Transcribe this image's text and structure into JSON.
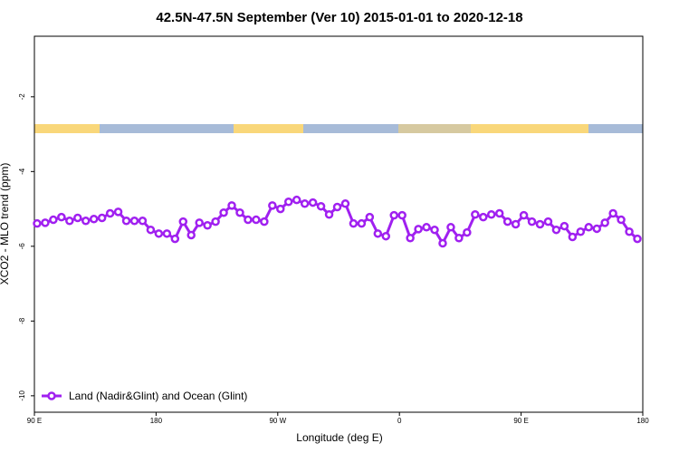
{
  "chart_data": {
    "type": "line",
    "title": "42.5N-47.5N September (Ver 10)   2015-01-01 to 2020-12-18",
    "x_label": "Longitude (deg E)",
    "y_label": "XCO2 - MLO trend (ppm)",
    "xlim": [
      90,
      540
    ],
    "ylim": [
      -10.44,
      -0.38
    ],
    "xticks": [
      {
        "value": 90,
        "label": "90 E"
      },
      180,
      {
        "value": 270,
        "label": "90 W"
      },
      {
        "value": 360,
        "label": "0"
      },
      {
        "value": 450,
        "label": "90 E"
      },
      {
        "value": 540,
        "label": "180"
      }
    ],
    "yticks": [
      -2,
      -4,
      -6,
      -8,
      -10
    ],
    "legend": "bottom-left",
    "x": [
      92,
      98,
      104,
      110,
      116,
      122,
      128,
      134,
      140,
      146,
      152,
      158,
      164,
      170,
      176,
      182,
      188,
      194,
      200,
      206,
      212,
      218,
      224,
      230,
      236,
      242,
      248,
      254,
      260,
      266,
      272,
      278,
      284,
      290,
      296,
      302,
      308,
      314,
      320,
      326,
      332,
      338,
      344,
      350,
      356,
      362,
      368,
      374,
      380,
      386,
      392,
      398,
      404,
      410,
      416,
      422,
      428,
      434,
      440,
      446,
      452,
      458,
      464,
      470,
      476,
      482,
      488,
      494,
      500,
      506,
      512,
      518,
      524,
      530,
      536
    ],
    "series": [
      {
        "name": "Land (Nadir&Glint) and Ocean (Glint)",
        "color": "#a020f0",
        "values": [
          -5.39,
          -5.37,
          -5.29,
          -5.22,
          -5.32,
          -5.24,
          -5.32,
          -5.27,
          -5.24,
          -5.12,
          -5.08,
          -5.32,
          -5.32,
          -5.32,
          -5.56,
          -5.66,
          -5.66,
          -5.8,
          -5.34,
          -5.7,
          -5.37,
          -5.44,
          -5.34,
          -5.1,
          -4.91,
          -5.1,
          -5.29,
          -5.29,
          -5.34,
          -4.91,
          -5.0,
          -4.81,
          -4.76,
          -4.86,
          -4.83,
          -4.93,
          -5.15,
          -4.95,
          -4.86,
          -5.39,
          -5.39,
          -5.22,
          -5.66,
          -5.73,
          -5.17,
          -5.17,
          -5.78,
          -5.54,
          -5.49,
          -5.56,
          -5.92,
          -5.49,
          -5.78,
          -5.63,
          -5.15,
          -5.22,
          -5.15,
          -5.12,
          -5.34,
          -5.41,
          -5.17,
          -5.34,
          -5.41,
          -5.34,
          -5.56,
          -5.46,
          -5.75,
          -5.61,
          -5.49,
          -5.53,
          -5.37,
          -5.12,
          -5.29,
          -5.61,
          -5.8
        ]
      }
    ]
  }
}
